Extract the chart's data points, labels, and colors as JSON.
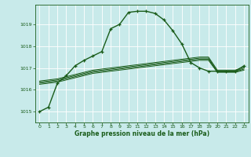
{
  "title": "Graphe pression niveau de la mer (hPa)",
  "bg_color": "#c8eaea",
  "grid_color": "#ffffff",
  "line_color": "#1a5c1a",
  "xlim": [
    -0.5,
    23.5
  ],
  "ylim": [
    1014.5,
    1019.9
  ],
  "yticks": [
    1015,
    1016,
    1017,
    1018,
    1019
  ],
  "xticks": [
    0,
    1,
    2,
    3,
    4,
    5,
    6,
    7,
    8,
    9,
    10,
    11,
    12,
    13,
    14,
    15,
    16,
    17,
    18,
    19,
    20,
    21,
    22,
    23
  ],
  "series": [
    [
      1015.0,
      1015.2,
      1016.3,
      1016.65,
      1017.1,
      1017.35,
      1017.55,
      1017.75,
      1018.8,
      1019.0,
      1019.55,
      1019.6,
      1019.6,
      1019.5,
      1019.2,
      1018.7,
      1018.1,
      1017.25,
      1017.0,
      1016.85,
      1016.85,
      1016.85,
      1016.85,
      1017.1
    ],
    [
      1016.4,
      1016.45,
      1016.5,
      1016.6,
      1016.7,
      1016.8,
      1016.9,
      1016.95,
      1017.0,
      1017.05,
      1017.1,
      1017.15,
      1017.2,
      1017.25,
      1017.3,
      1017.35,
      1017.4,
      1017.45,
      1017.5,
      1017.5,
      1016.9,
      1016.9,
      1016.9,
      1017.05
    ],
    [
      1016.35,
      1016.4,
      1016.45,
      1016.55,
      1016.65,
      1016.75,
      1016.85,
      1016.9,
      1016.95,
      1017.0,
      1017.05,
      1017.1,
      1017.15,
      1017.2,
      1017.25,
      1017.3,
      1017.35,
      1017.4,
      1017.45,
      1017.45,
      1016.85,
      1016.85,
      1016.85,
      1017.0
    ],
    [
      1016.3,
      1016.35,
      1016.4,
      1016.5,
      1016.6,
      1016.7,
      1016.8,
      1016.85,
      1016.9,
      1016.95,
      1017.0,
      1017.05,
      1017.1,
      1017.15,
      1017.2,
      1017.25,
      1017.3,
      1017.35,
      1017.4,
      1017.4,
      1016.82,
      1016.82,
      1016.82,
      1016.95
    ],
    [
      1016.25,
      1016.3,
      1016.35,
      1016.45,
      1016.55,
      1016.65,
      1016.75,
      1016.8,
      1016.85,
      1016.9,
      1016.95,
      1017.0,
      1017.05,
      1017.1,
      1017.15,
      1017.2,
      1017.25,
      1017.3,
      1017.35,
      1017.35,
      1016.8,
      1016.8,
      1016.8,
      1016.9
    ]
  ]
}
